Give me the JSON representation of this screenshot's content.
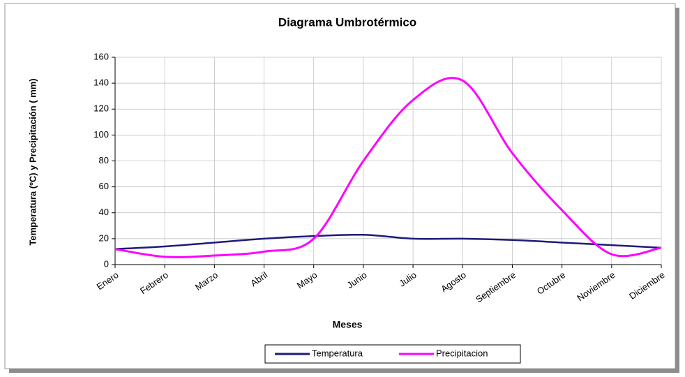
{
  "chart_data": {
    "type": "line",
    "title": "Diagrama Umbrotérmico",
    "x_label": "Meses",
    "y_label": "Temperatura (ºC) y Precipitación ( mm)",
    "categories": [
      "Enero",
      "Febrero",
      "Marzo",
      "Abril",
      "Mayo",
      "Junio",
      "Julio",
      "Agosto",
      "Septiembre",
      "Octubre",
      "Noviembre",
      "Diciembre"
    ],
    "series": [
      {
        "name": "Temperatura",
        "color": "#1f1a7a",
        "values": [
          12,
          14,
          17,
          20,
          22,
          23,
          20,
          20,
          19,
          17,
          15,
          13
        ]
      },
      {
        "name": "Precipitacion",
        "color": "#ff00ff",
        "values": [
          12,
          6,
          7,
          10,
          20,
          80,
          127,
          142,
          86,
          42,
          8,
          13
        ]
      }
    ],
    "ylim": [
      0,
      160
    ],
    "yticks": [
      0,
      20,
      40,
      60,
      80,
      100,
      120,
      140,
      160
    ],
    "grid": true,
    "legend": "bottom"
  }
}
